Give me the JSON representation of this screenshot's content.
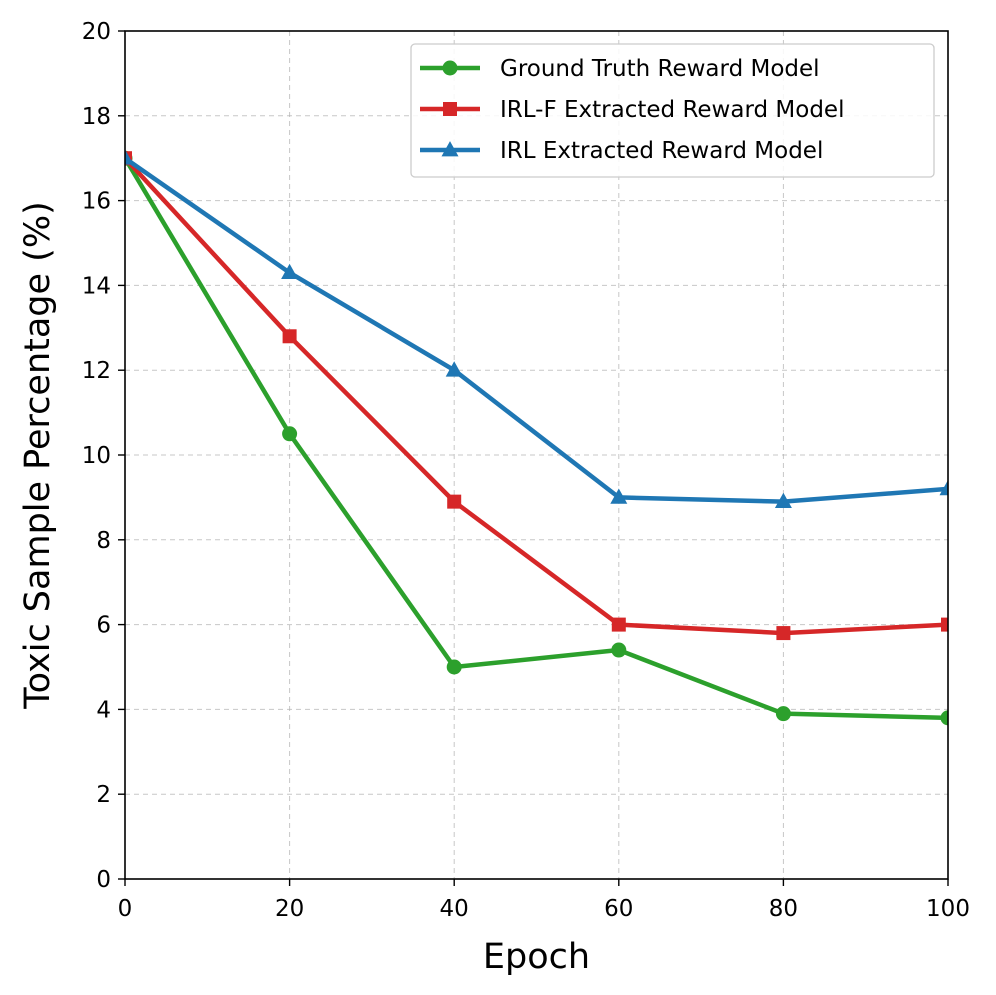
{
  "chart_data": {
    "type": "line",
    "xlabel": "Epoch",
    "ylabel": "Toxic Sample Percentage (%)",
    "xlim": [
      0,
      100
    ],
    "ylim": [
      0,
      20
    ],
    "x_ticks": [
      "0",
      "20",
      "40",
      "60",
      "80",
      "100"
    ],
    "y_ticks": [
      "0",
      "2",
      "4",
      "6",
      "8",
      "10",
      "12",
      "14",
      "16",
      "18",
      "20"
    ],
    "grid": true,
    "legend_position": "top-right",
    "x": [
      0,
      20,
      40,
      60,
      80,
      100
    ],
    "series": [
      {
        "name": "Ground Truth Reward Model",
        "color": "#2ca02c",
        "marker": "circle",
        "values": [
          17.0,
          10.5,
          5.0,
          5.4,
          3.9,
          3.8
        ]
      },
      {
        "name": "IRL-F Extracted Reward Model",
        "color": "#d62728",
        "marker": "square",
        "values": [
          17.0,
          12.8,
          8.9,
          6.0,
          5.8,
          6.0
        ]
      },
      {
        "name": "IRL Extracted Reward Model",
        "color": "#1f77b4",
        "marker": "triangle",
        "values": [
          17.0,
          14.3,
          12.0,
          9.0,
          8.9,
          9.2
        ]
      }
    ]
  }
}
